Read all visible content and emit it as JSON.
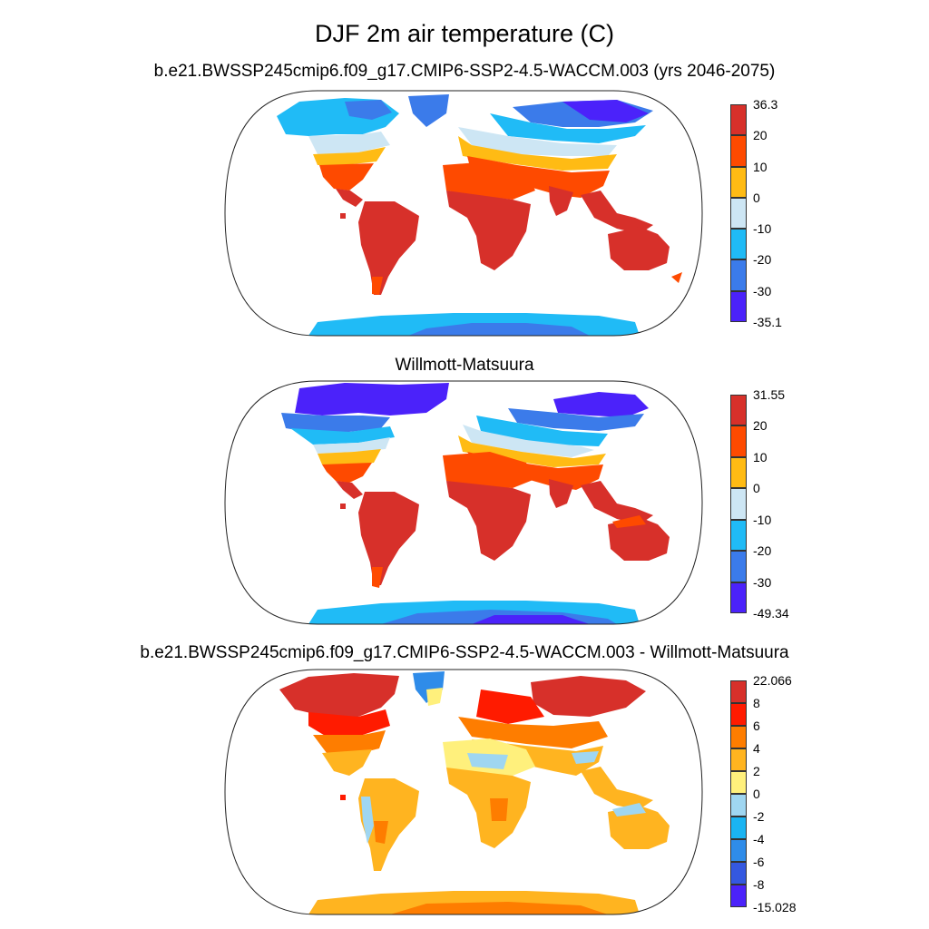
{
  "title": "DJF 2m air temperature (C)",
  "panels": [
    {
      "id": "model",
      "subtitle": "b.e21.BWSSP245cmip6.f09_g17.CMIP6-SSP2-4.5-WACCM.003 (yrs 2046-2075)",
      "colorbar": {
        "labels": [
          "36.3",
          "20",
          "10",
          "0",
          "-10",
          "-20",
          "-30",
          "-35.1"
        ],
        "colors": [
          "#d7302a",
          "#fe4a00",
          "#ffbb14",
          "#cde6f4",
          "#20bbf6",
          "#3b7bea",
          "#4b22fa"
        ]
      }
    },
    {
      "id": "obs",
      "subtitle": "Willmott-Matsuura",
      "colorbar": {
        "labels": [
          "31.55",
          "20",
          "10",
          "0",
          "-10",
          "-20",
          "-30",
          "-49.34"
        ],
        "colors": [
          "#d7302a",
          "#fe4a00",
          "#ffbb14",
          "#cde6f4",
          "#20bbf6",
          "#3b7bea",
          "#4b22fa"
        ]
      }
    },
    {
      "id": "diff",
      "subtitle": "b.e21.BWSSP245cmip6.f09_g17.CMIP6-SSP2-4.5-WACCM.003 - Willmott-Matsuura",
      "colorbar": {
        "labels": [
          "22.066",
          "8",
          "6",
          "4",
          "2",
          "0",
          "-2",
          "-4",
          "-6",
          "-8",
          "-15.028"
        ],
        "colors": [
          "#d7302a",
          "#ff1b00",
          "#fe7d00",
          "#ffb420",
          "#fff07c",
          "#9fd6f1",
          "#1ab4f2",
          "#2f8ce9",
          "#3458e0",
          "#4b22fa"
        ]
      }
    }
  ]
}
